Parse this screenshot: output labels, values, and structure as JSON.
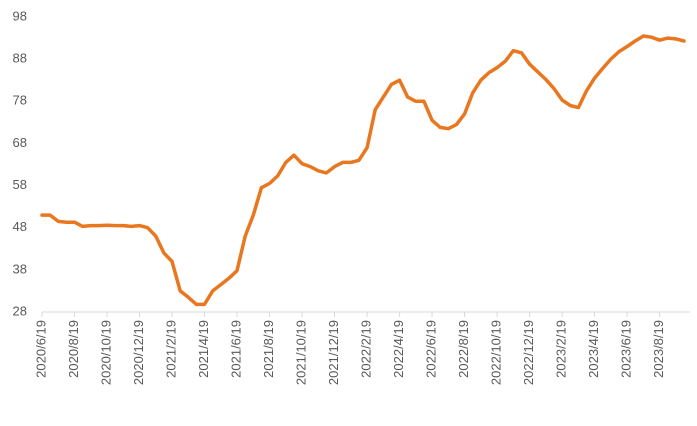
{
  "chart_data": {
    "type": "line",
    "color": "#e8771f",
    "categories": [
      "2020/6/19",
      null,
      null,
      null,
      "2020/8/19",
      null,
      null,
      null,
      "2020/10/19",
      null,
      null,
      null,
      "2020/12/19",
      null,
      null,
      null,
      "2021/2/19",
      null,
      null,
      null,
      "2021/4/19",
      null,
      null,
      null,
      "2021/6/19",
      null,
      null,
      null,
      "2021/8/19",
      null,
      null,
      null,
      "2021/10/19",
      null,
      null,
      null,
      "2021/12/19",
      null,
      null,
      null,
      "2022/2/19",
      null,
      null,
      null,
      "2022/4/19",
      null,
      null,
      null,
      "2022/6/19",
      null,
      null,
      null,
      "2022/8/19",
      null,
      null,
      null,
      "2022/10/19",
      null,
      null,
      null,
      "2022/12/19",
      null,
      null,
      null,
      "2023/2/19",
      null,
      null,
      null,
      "2023/4/19",
      null,
      null,
      null,
      "2023/6/19",
      null,
      null,
      null,
      "2023/8/19",
      null,
      null,
      null
    ],
    "values": [
      51,
      51,
      49.5,
      49.3,
      49.3,
      48.3,
      48.5,
      48.5,
      48.6,
      48.5,
      48.5,
      48.3,
      48.5,
      48,
      46,
      42,
      40,
      33,
      31.5,
      29.8,
      29.8,
      33,
      34.5,
      36,
      37.8,
      46,
      51,
      57.5,
      58.5,
      60.3,
      63.5,
      65.2,
      63.2,
      62.5,
      61.5,
      61,
      62.5,
      63.5,
      63.5,
      64,
      67,
      76,
      79,
      82,
      83,
      79,
      78,
      78,
      73.5,
      71.8,
      71.5,
      72.5,
      75,
      80,
      83,
      84.8,
      86,
      87.5,
      90,
      89.5,
      86.8,
      85,
      83.2,
      81,
      78.3,
      77,
      76.5,
      80.5,
      83.5,
      85.8,
      88,
      89.8,
      91,
      92.3,
      93.5,
      93.2,
      92.5,
      93,
      92.8,
      92.3
    ],
    "ylim": [
      28,
      98
    ],
    "yticks": [
      28,
      38,
      48,
      58,
      68,
      78,
      88,
      98
    ]
  }
}
